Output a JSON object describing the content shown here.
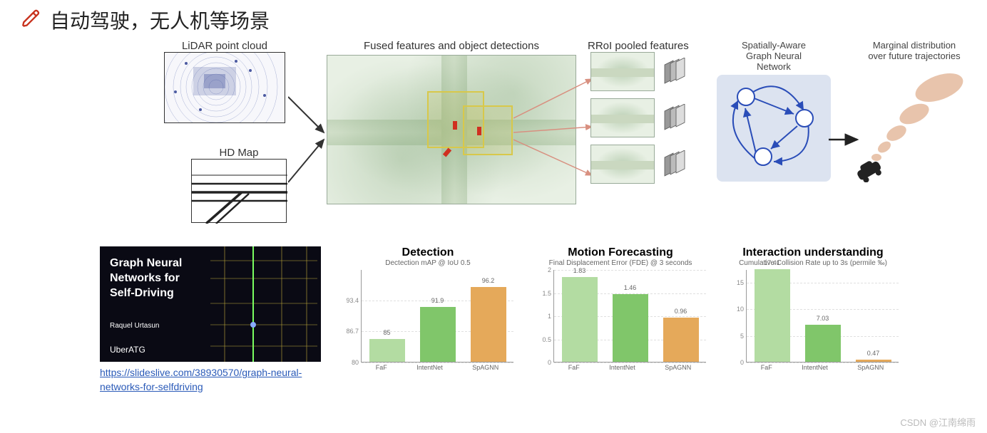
{
  "header": {
    "title": "自动驾驶，无人机等场景"
  },
  "pipeline": {
    "lidar_label": "LiDAR point cloud",
    "hdmap_label": "HD Map",
    "fused_label": "Fused features and object detections",
    "rroi_label": "RRoI pooled features",
    "gnn_title_l1": "Spatially-Aware",
    "gnn_title_l2": "Graph Neural",
    "gnn_title_l3": "Network",
    "marginal_l1": "Marginal distribution",
    "marginal_l2": "over future trajectories",
    "gnn_panel_color": "#dce3f0",
    "gnn_node_border": "#2a4db8",
    "ellipse_color": "#e0b090"
  },
  "slide": {
    "title_l1": "Graph Neural",
    "title_l2": "Networks for",
    "title_l3": "Self-Driving",
    "author": "Raquel Urtasun",
    "brand": "UberATG",
    "link_text": "https://slideslive.com/38930570/graph-neural-networks-for-selfdriving",
    "link_href": "https://slideslive.com/38930570/graph-neural-networks-for-selfdriving",
    "bg": "#0a0a14",
    "road_color": "#d8c040"
  },
  "charts": {
    "bar_colors": {
      "faf": "#b3dca2",
      "intent": "#80c66a",
      "spagnn": "#e5a95a"
    },
    "detection": {
      "title": "Detection",
      "subtitle": "Dectection mAP @ IoU 0.5",
      "ylim": [
        80.0,
        100.0
      ],
      "ytick_step": 6.7,
      "bars": [
        {
          "label": "FaF",
          "value": 85.0,
          "color_key": "faf"
        },
        {
          "label": "IntentNet",
          "value": 91.9,
          "color_key": "intent"
        },
        {
          "label": "SpAGNN",
          "value": 96.2,
          "color_key": "spagnn"
        }
      ]
    },
    "forecasting": {
      "title": "Motion Forecasting",
      "subtitle": "Final Displacement Error (FDE) @ 3 seconds",
      "ylim": [
        0.0,
        2.0
      ],
      "ytick_step": 0.5,
      "bars": [
        {
          "label": "FaF",
          "value": 1.83,
          "color_key": "faf"
        },
        {
          "label": "IntentNet",
          "value": 1.46,
          "color_key": "intent"
        },
        {
          "label": "SpAGNN",
          "value": 0.96,
          "color_key": "spagnn"
        }
      ]
    },
    "interaction": {
      "title": "Interaction understanding",
      "subtitle": "Cumulative Collision Rate up to 3s (permile ‰)",
      "ylim": [
        0.0,
        15.0
      ],
      "ytick_step": 5.0,
      "bars": [
        {
          "label": "FaF",
          "value": 17.41,
          "color_key": "faf"
        },
        {
          "label": "IntentNet",
          "value": 7.03,
          "color_key": "intent"
        },
        {
          "label": "SpAGNN",
          "value": 0.47,
          "color_key": "spagnn"
        }
      ]
    }
  },
  "watermark": "CSDN @江南绵雨"
}
